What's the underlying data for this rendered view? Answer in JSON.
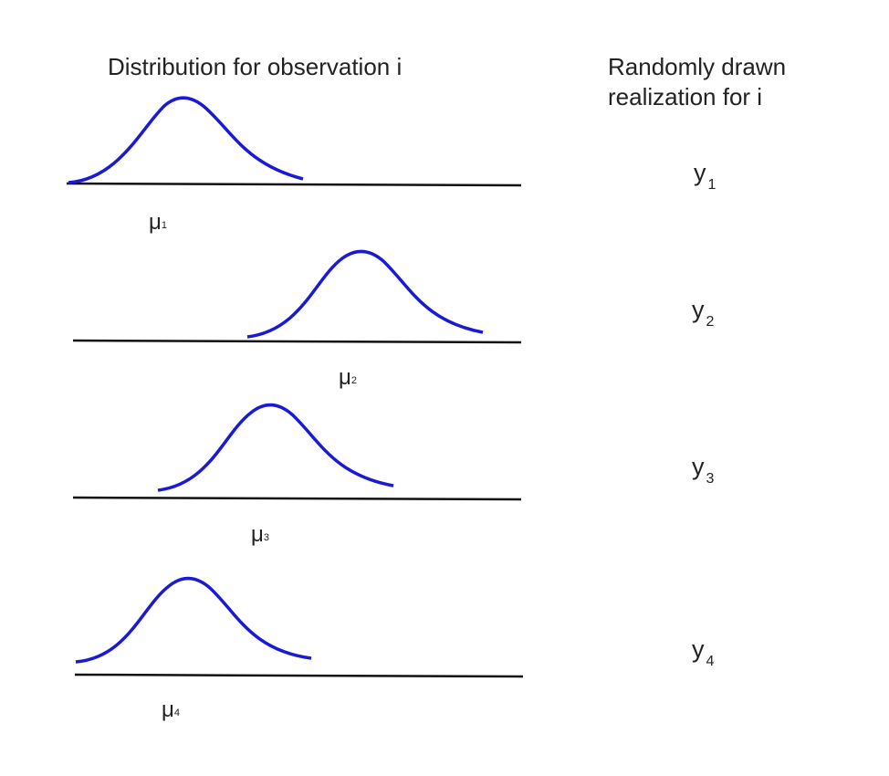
{
  "headings": {
    "distribution": "Distribution for observation i",
    "realization_line1": "Randomly drawn",
    "realization_line2": "realization for i"
  },
  "rows": [
    {
      "mu_symbol": "μ",
      "mu_index": "1",
      "y_symbol": "y",
      "y_index": "1"
    },
    {
      "mu_symbol": "μ",
      "mu_index": "2",
      "y_symbol": "y",
      "y_index": "2"
    },
    {
      "mu_symbol": "μ",
      "mu_index": "3",
      "y_symbol": "y",
      "y_index": "3"
    },
    {
      "mu_symbol": "μ",
      "mu_index": "4",
      "y_symbol": "y",
      "y_index": "4"
    }
  ],
  "colors": {
    "curve": "#1a1ad6",
    "axis": "#111111",
    "text": "#222222"
  }
}
